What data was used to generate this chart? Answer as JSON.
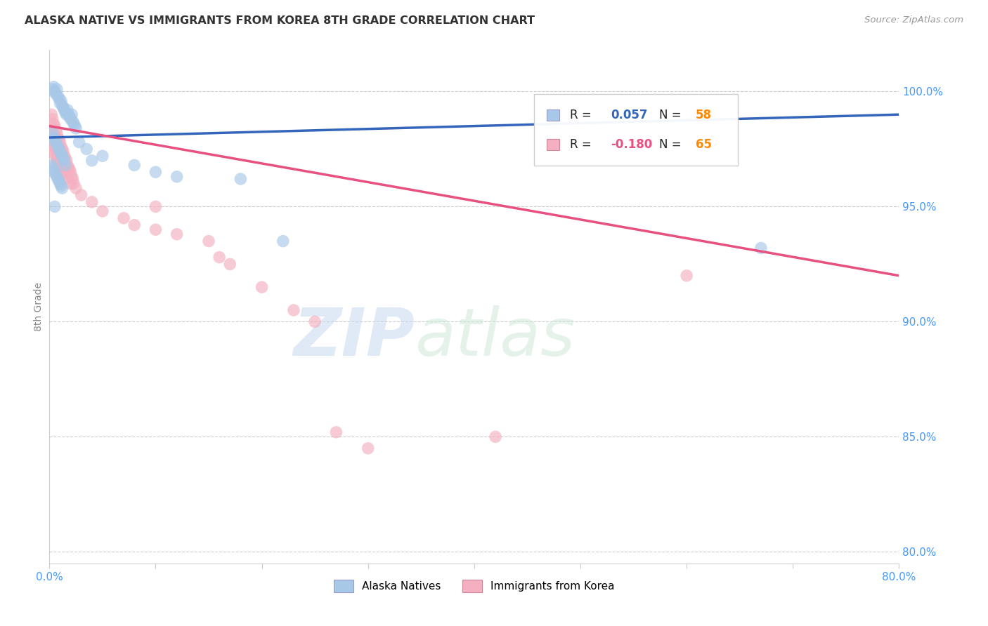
{
  "title": "ALASKA NATIVE VS IMMIGRANTS FROM KOREA 8TH GRADE CORRELATION CHART",
  "source": "Source: ZipAtlas.com",
  "ylabel": "8th Grade",
  "watermark_zip": "ZIP",
  "watermark_atlas": "atlas",
  "xlim": [
    0.0,
    80.0
  ],
  "ylim": [
    79.5,
    101.8
  ],
  "yticks": [
    80.0,
    85.0,
    90.0,
    95.0,
    100.0
  ],
  "ytick_labels": [
    "80.0%",
    "85.0%",
    "90.0%",
    "95.0%",
    "100.0%"
  ],
  "xticks": [
    0.0,
    10.0,
    20.0,
    30.0,
    40.0,
    50.0,
    60.0,
    70.0,
    80.0
  ],
  "xtick_labels": [
    "0.0%",
    "",
    "",
    "",
    "",
    "",
    "",
    "",
    "80.0%"
  ],
  "legend_blue_R_val": "0.057",
  "legend_blue_N_val": "58",
  "legend_pink_R_val": "-0.180",
  "legend_pink_N_val": "65",
  "blue_color": "#A8C8E8",
  "pink_color": "#F4B0C0",
  "blue_line_color": "#3366BB",
  "pink_line_color": "#E85080",
  "r_label_color": "#333333",
  "n_label_blue_color": "#FF8800",
  "n_label_pink_color": "#FF8800",
  "r_val_blue_color": "#3366BB",
  "r_val_pink_color": "#E85080",
  "axis_color": "#CCCCCC",
  "grid_color": "#CCCCCC",
  "title_color": "#333333",
  "source_color": "#999999",
  "ylabel_color": "#888888",
  "ytick_color": "#4499FF",
  "xtick_color": "#4499FF",
  "blue_line_x0": 0.0,
  "blue_line_x1": 80.0,
  "blue_line_y0": 98.0,
  "blue_line_y1": 99.0,
  "pink_line_x0": 0.0,
  "pink_line_x1": 80.0,
  "pink_line_y0": 98.5,
  "pink_line_y1": 92.0,
  "blue_scatter_x": [
    0.3,
    0.4,
    0.5,
    0.6,
    0.7,
    0.8,
    0.9,
    1.0,
    1.1,
    1.2,
    1.3,
    1.4,
    1.5,
    1.6,
    1.7,
    1.8,
    1.9,
    2.0,
    2.1,
    2.2,
    2.3,
    2.4,
    2.5,
    0.3,
    0.4,
    0.5,
    0.6,
    0.7,
    0.8,
    0.9,
    1.0,
    1.1,
    1.2,
    1.3,
    1.4,
    0.2,
    0.3,
    0.4,
    0.5,
    0.6,
    0.7,
    0.8,
    0.9,
    1.0,
    1.1,
    1.2,
    2.8,
    3.5,
    4.0,
    5.0,
    8.0,
    10.0,
    12.0,
    18.0,
    22.0,
    67.0,
    0.5,
    1.5
  ],
  "blue_scatter_y": [
    100.1,
    100.2,
    100.0,
    99.9,
    100.1,
    99.8,
    99.7,
    99.5,
    99.6,
    99.4,
    99.3,
    99.2,
    99.1,
    99.0,
    99.2,
    99.0,
    98.9,
    98.8,
    99.0,
    98.7,
    98.6,
    98.5,
    98.4,
    98.2,
    98.0,
    97.9,
    97.8,
    97.7,
    97.6,
    97.5,
    97.4,
    97.3,
    97.2,
    97.1,
    97.0,
    96.8,
    96.7,
    96.6,
    96.5,
    96.4,
    96.3,
    96.2,
    96.1,
    96.0,
    95.9,
    95.8,
    97.8,
    97.5,
    97.0,
    97.2,
    96.8,
    96.5,
    96.3,
    96.2,
    93.5,
    93.2,
    95.0,
    96.8
  ],
  "pink_scatter_x": [
    0.2,
    0.3,
    0.4,
    0.5,
    0.6,
    0.7,
    0.8,
    0.9,
    1.0,
    1.1,
    1.2,
    1.3,
    1.4,
    1.5,
    1.6,
    1.7,
    1.8,
    1.9,
    2.0,
    2.1,
    2.2,
    2.3,
    0.2,
    0.3,
    0.4,
    0.5,
    0.6,
    0.7,
    0.8,
    0.9,
    1.0,
    1.1,
    1.2,
    1.3,
    0.2,
    0.3,
    0.4,
    0.5,
    0.6,
    0.7,
    0.8,
    0.9,
    1.0,
    1.1,
    1.5,
    2.0,
    2.5,
    3.0,
    4.0,
    5.0,
    7.0,
    8.0,
    10.0,
    15.0,
    16.0,
    17.0,
    20.0,
    23.0,
    25.0,
    27.0,
    30.0,
    42.0,
    60.0,
    10.0,
    12.0
  ],
  "pink_scatter_y": [
    99.0,
    98.8,
    98.6,
    98.5,
    98.3,
    98.2,
    98.0,
    97.9,
    97.8,
    97.6,
    97.5,
    97.4,
    97.2,
    97.1,
    97.0,
    96.8,
    96.7,
    96.6,
    96.5,
    96.3,
    96.2,
    96.0,
    98.2,
    98.0,
    97.8,
    97.6,
    97.5,
    97.3,
    97.2,
    97.0,
    96.8,
    96.7,
    96.5,
    96.4,
    97.8,
    97.6,
    97.5,
    97.3,
    97.2,
    97.0,
    96.8,
    96.7,
    96.5,
    96.4,
    96.2,
    96.0,
    95.8,
    95.5,
    95.2,
    94.8,
    94.5,
    94.2,
    95.0,
    93.5,
    92.8,
    92.5,
    91.5,
    90.5,
    90.0,
    85.2,
    84.5,
    85.0,
    92.0,
    94.0,
    93.8
  ]
}
